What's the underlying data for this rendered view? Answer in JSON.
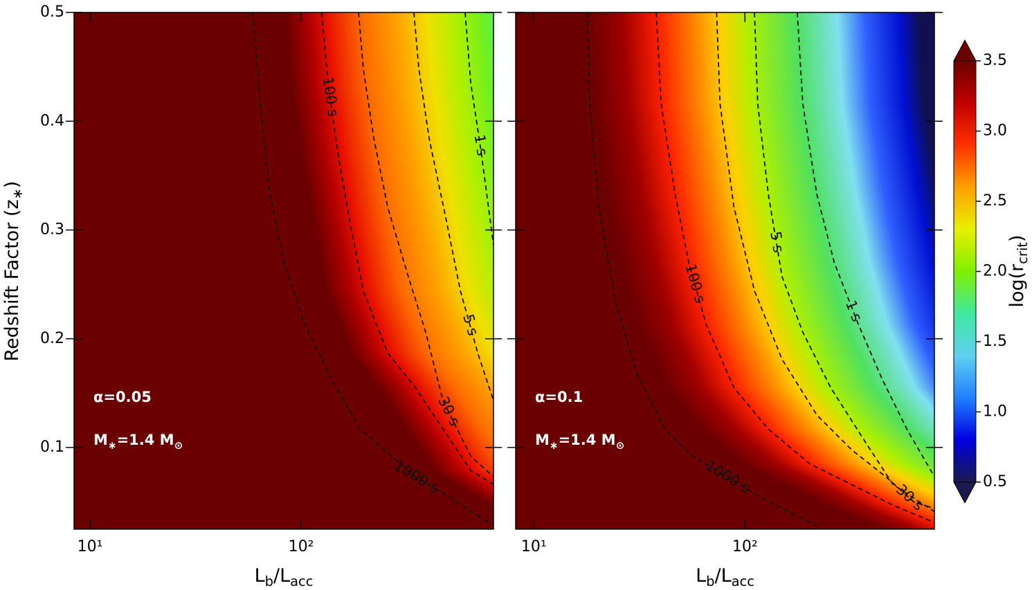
{
  "chart_data": [
    {
      "type": "contourmap",
      "xscale": "log",
      "xlim": [
        8.4,
        815
      ],
      "ylim": [
        0.025,
        0.5
      ],
      "xticks": [
        {
          "value": 10,
          "label": "10¹"
        },
        {
          "value": 100,
          "label": "10²"
        }
      ],
      "yticks": [
        0.1,
        0.2,
        0.3,
        0.4,
        0.5
      ],
      "show_yticklabels": true,
      "xlabel": [
        "L",
        "b",
        "/L",
        "acc"
      ],
      "ylabel": [
        "Redshift Factor (z",
        "∗",
        ")"
      ],
      "contour_color": "#111111",
      "annotations": [
        {
          "text": [
            "α=0.05"
          ]
        },
        {
          "text": [
            "M",
            "∗",
            "=1.4 M",
            "⊙"
          ]
        }
      ],
      "contours": [
        {
          "label": "1000 s",
          "x": [
            59,
            64,
            71,
            83,
            104,
            140,
            190,
            348,
            507,
            815
          ],
          "y": [
            0.5,
            0.416,
            0.333,
            0.27,
            0.213,
            0.162,
            0.117,
            0.073,
            0.054,
            0.028
          ]
        },
        {
          "label": "100 s",
          "x": [
            125,
            135,
            151,
            170,
            197,
            257,
            348,
            470,
            636,
            815
          ],
          "y": [
            0.5,
            0.429,
            0.365,
            0.308,
            0.244,
            0.187,
            0.155,
            0.117,
            0.079,
            0.066
          ]
        },
        {
          "label": "30 s",
          "x": [
            187,
            197,
            221,
            257,
            322,
            389,
            470,
            636,
            815
          ],
          "y": [
            0.5,
            0.448,
            0.384,
            0.321,
            0.257,
            0.206,
            0.143,
            0.092,
            0.073
          ]
        },
        {
          "label": "5 s",
          "x": [
            342,
            361,
            404,
            488,
            568,
            686,
            815
          ],
          "y": [
            0.5,
            0.448,
            0.384,
            0.308,
            0.244,
            0.187,
            0.143
          ]
        },
        {
          "label": "1 s",
          "x": [
            598,
            636,
            712,
            815
          ],
          "y": [
            0.5,
            0.435,
            0.372,
            0.286
          ]
        }
      ]
    },
    {
      "type": "contourmap",
      "xscale": "log",
      "xlim": [
        8.2,
        790
      ],
      "ylim": [
        0.025,
        0.5
      ],
      "xticks": [
        {
          "value": 10,
          "label": "10¹"
        },
        {
          "value": 100,
          "label": "10²"
        }
      ],
      "yticks": [
        0.1,
        0.2,
        0.3,
        0.4,
        0.5
      ],
      "show_yticklabels": false,
      "xlabel": [
        "L",
        "b",
        "/L",
        "acc"
      ],
      "contour_color": "#111111",
      "annotations": [
        {
          "text": [
            "α=0.1"
          ]
        },
        {
          "text": [
            "M",
            "∗",
            "=1.4 M",
            "⊙"
          ]
        }
      ],
      "contours": [
        {
          "label": "1000 s",
          "x": [
            17.9,
            18.4,
            20.3,
            24.5,
            30.8,
            41.7,
            56.3,
            82.2,
            120,
            219
          ],
          "y": [
            0.5,
            0.416,
            0.321,
            0.232,
            0.168,
            0.117,
            0.092,
            0.073,
            0.054,
            0.028
          ]
        },
        {
          "label": "100 s",
          "x": [
            38.0,
            40.1,
            46.7,
            54.2,
            65.5,
            88.7,
            129,
            203,
            320,
            503,
            791
          ],
          "y": [
            0.5,
            0.416,
            0.333,
            0.27,
            0.213,
            0.155,
            0.117,
            0.085,
            0.066,
            0.047,
            0.031
          ]
        },
        {
          "label": "30 s",
          "x": [
            73.4,
            76.2,
            88.7,
            111,
            150,
            219,
            320,
            466,
            631,
            791
          ],
          "y": [
            0.5,
            0.416,
            0.321,
            0.244,
            0.181,
            0.13,
            0.098,
            0.073,
            0.05,
            0.044
          ]
        },
        {
          "label": "5 s",
          "x": [
            111,
            115,
            129,
            150,
            188,
            255,
            372,
            503,
            791
          ],
          "y": [
            0.5,
            0.416,
            0.333,
            0.257,
            0.206,
            0.155,
            0.105,
            0.066,
            0.041
          ]
        },
        {
          "label": "1 s",
          "x": [
            177,
            188,
            219,
            265,
            345,
            449,
            585,
            791
          ],
          "y": [
            0.5,
            0.416,
            0.333,
            0.27,
            0.213,
            0.162,
            0.117,
            0.073
          ]
        }
      ]
    }
  ],
  "colorbar": {
    "label": [
      "log(r",
      "crit",
      ")"
    ],
    "clim": [
      0.5,
      3.5
    ],
    "ticks": [
      0.5,
      {
        "value": 1,
        "label": "1.0"
      },
      1.5,
      {
        "value": 2,
        "label": "2.0"
      },
      2.5,
      {
        "value": 3,
        "label": "3.0"
      },
      3.5
    ],
    "colormap": [
      "#1a1a50",
      "#0000e0",
      "#2080ff",
      "#60d0f0",
      "#40e8a0",
      "#80f000",
      "#e8f000",
      "#ffa000",
      "#ff3000",
      "#c00000",
      "#6b0000"
    ],
    "extend": "both"
  }
}
